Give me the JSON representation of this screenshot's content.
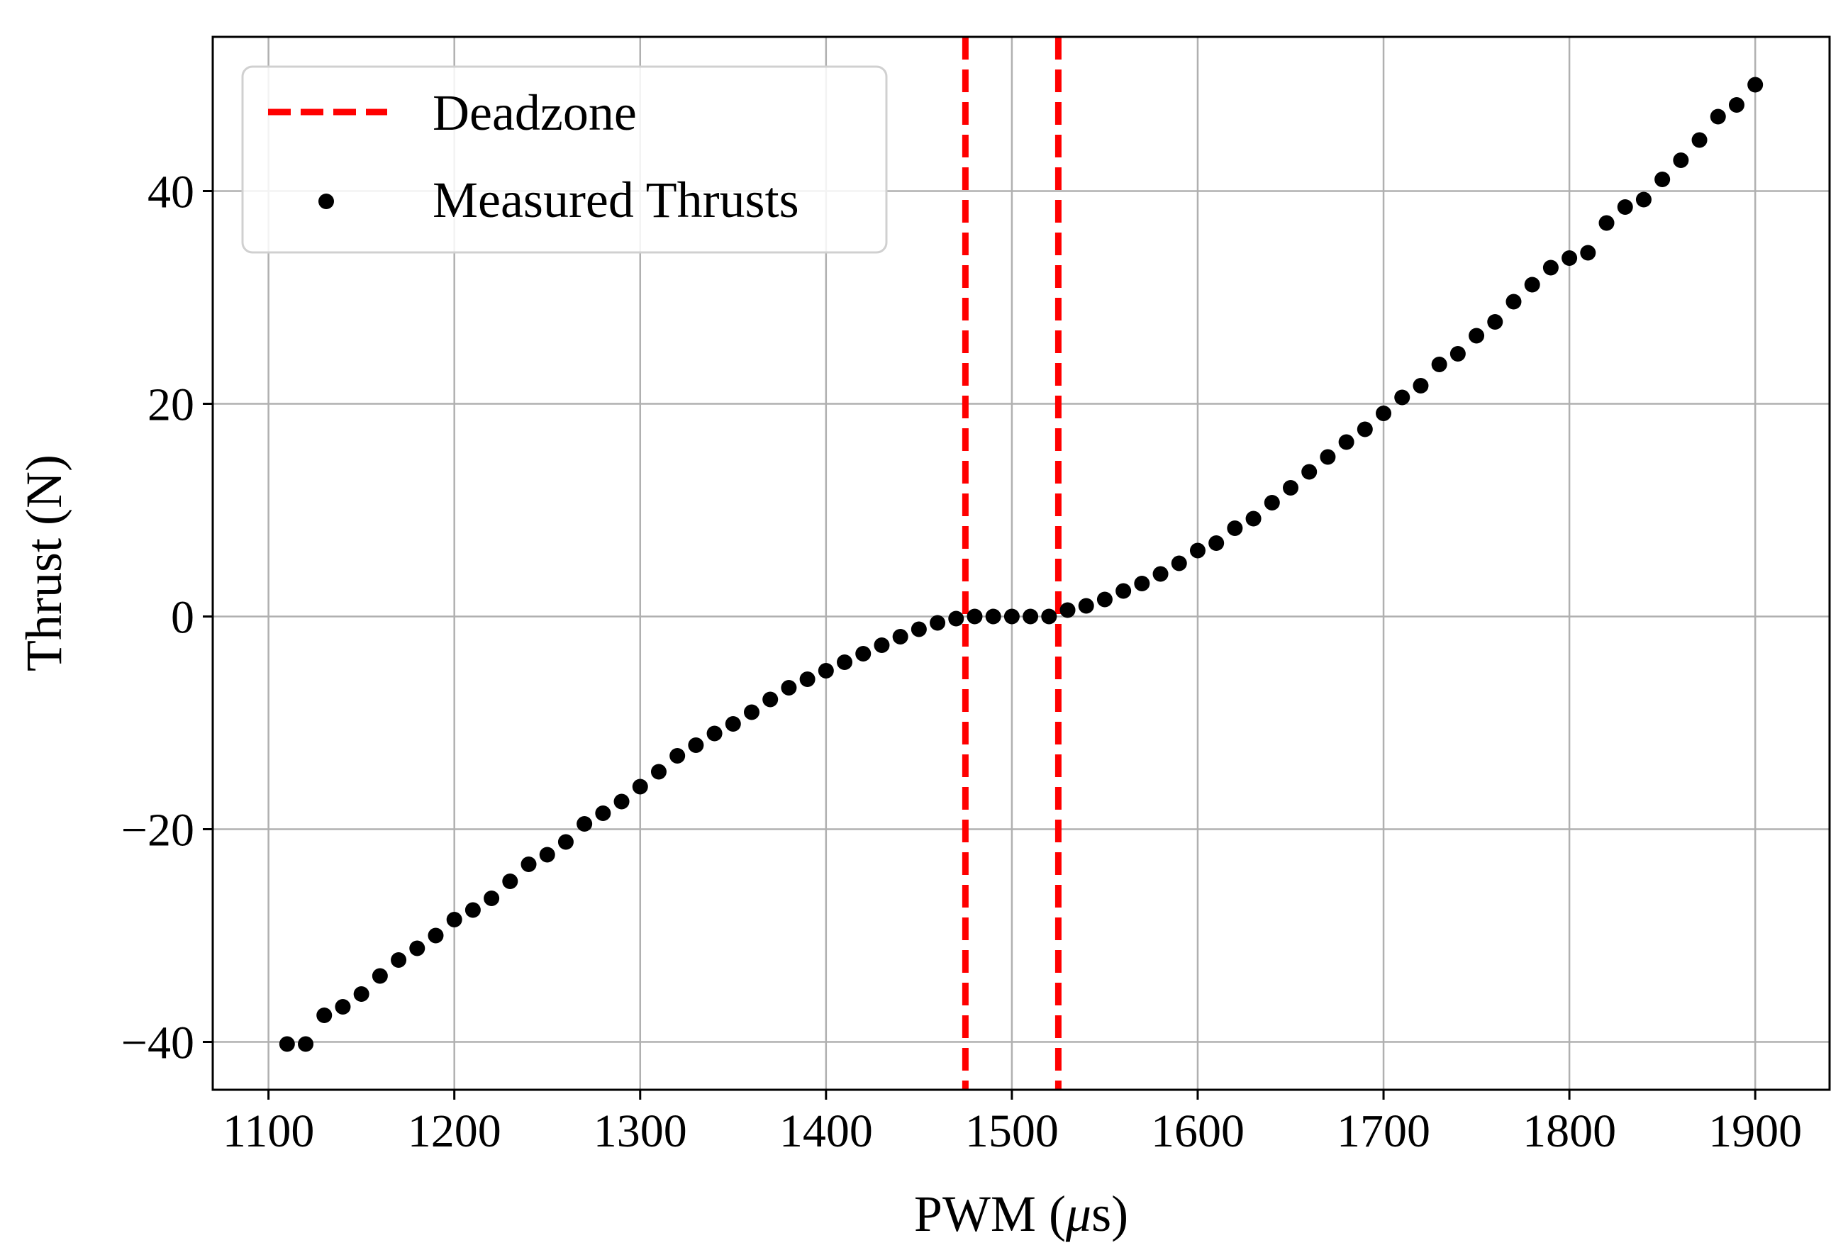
{
  "chart_data": {
    "type": "scatter",
    "title": "",
    "xlabel": "PWM (μs)",
    "xlabel_parts": {
      "prefix": "PWM (",
      "symbol": "μ",
      "suffix": "s)"
    },
    "ylabel": "Thrust (N)",
    "xlim": [
      1070,
      1940
    ],
    "ylim": [
      -44.5,
      54.5
    ],
    "xticks": [
      1100,
      1200,
      1300,
      1400,
      1500,
      1600,
      1700,
      1800,
      1900
    ],
    "xtick_labels": [
      "1100",
      "1200",
      "1300",
      "1400",
      "1500",
      "1600",
      "1700",
      "1800",
      "1900"
    ],
    "yticks": [
      -40,
      -20,
      0,
      20,
      40
    ],
    "ytick_labels": [
      "−40",
      "−20",
      "0",
      "20",
      "40"
    ],
    "grid": true,
    "legend_position": "top-left",
    "colors": {
      "deadzone": "#ff0000",
      "points": "#000000",
      "grid": "#b0b0b0"
    },
    "deadzone": {
      "name": "Deadzone",
      "x": [
        1475,
        1525
      ],
      "style": "dashed"
    },
    "series": [
      {
        "name": "Measured Thrusts",
        "marker": "circle",
        "x": [
          1110,
          1120,
          1130,
          1140,
          1150,
          1160,
          1170,
          1180,
          1190,
          1200,
          1210,
          1220,
          1230,
          1240,
          1250,
          1260,
          1270,
          1280,
          1290,
          1300,
          1310,
          1320,
          1330,
          1340,
          1350,
          1360,
          1370,
          1380,
          1390,
          1400,
          1410,
          1420,
          1430,
          1440,
          1450,
          1460,
          1470,
          1480,
          1490,
          1500,
          1510,
          1520,
          1530,
          1540,
          1550,
          1560,
          1570,
          1580,
          1590,
          1600,
          1610,
          1620,
          1630,
          1640,
          1650,
          1660,
          1670,
          1680,
          1690,
          1700,
          1710,
          1720,
          1730,
          1740,
          1750,
          1760,
          1770,
          1780,
          1790,
          1800,
          1810,
          1820,
          1830,
          1840,
          1850,
          1860,
          1870,
          1880,
          1890,
          1900
        ],
        "y": [
          -40.2,
          -40.2,
          -37.5,
          -36.7,
          -35.5,
          -33.8,
          -32.3,
          -31.2,
          -30.0,
          -28.5,
          -27.6,
          -26.5,
          -24.9,
          -23.3,
          -22.4,
          -21.2,
          -19.5,
          -18.5,
          -17.4,
          -16.0,
          -14.6,
          -13.1,
          -12.1,
          -11.0,
          -10.1,
          -9.0,
          -7.8,
          -6.7,
          -5.9,
          -5.1,
          -4.3,
          -3.5,
          -2.7,
          -1.9,
          -1.2,
          -0.6,
          -0.2,
          0.0,
          0.0,
          0.0,
          0.0,
          0.0,
          0.6,
          1.0,
          1.6,
          2.4,
          3.1,
          4.0,
          5.0,
          6.2,
          6.9,
          8.3,
          9.2,
          10.7,
          12.1,
          13.6,
          15.0,
          16.4,
          17.6,
          19.1,
          20.6,
          21.7,
          23.7,
          24.7,
          26.4,
          27.7,
          29.6,
          31.2,
          32.8,
          33.7,
          34.2,
          37.0,
          38.5,
          39.2,
          41.1,
          42.9,
          44.8,
          47.0,
          48.1,
          50.0
        ]
      }
    ]
  }
}
